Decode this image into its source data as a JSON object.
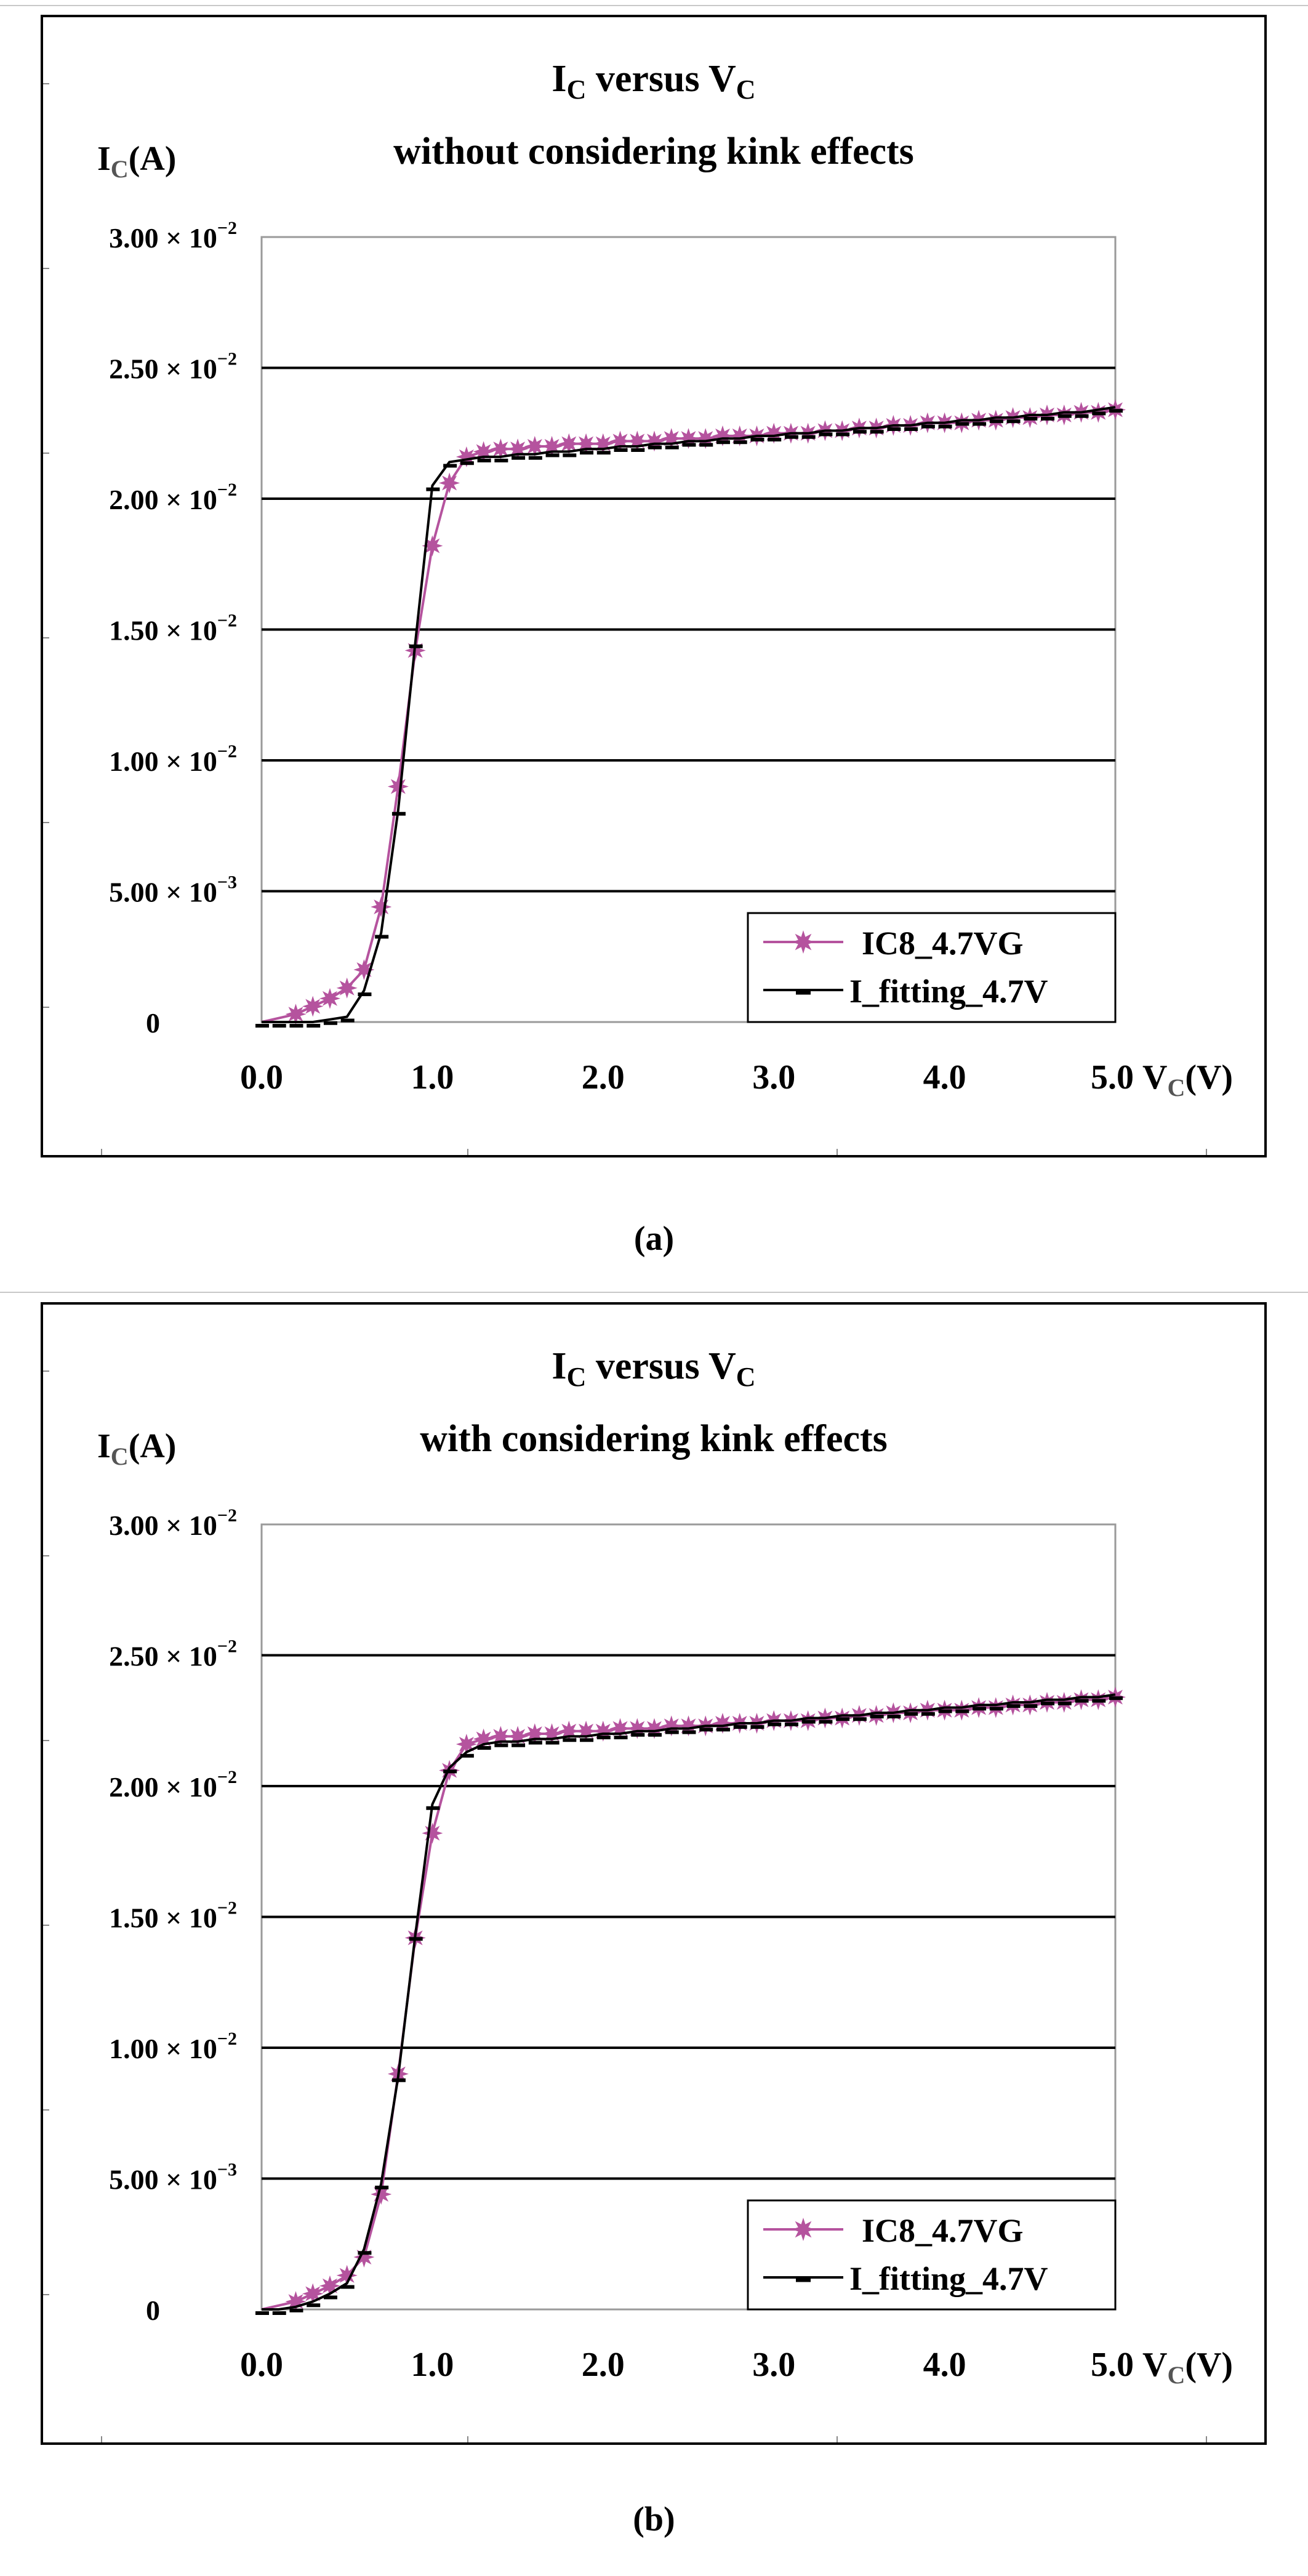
{
  "chart_data": [
    {
      "type": "line",
      "caption": "(a)",
      "title_line1_main": "I",
      "title_line1_sub1": "C",
      "title_line1_mid": " versus V",
      "title_line1_sub2": "C",
      "title_line2": "without considering kink effects",
      "ylabel_main": "I",
      "ylabel_sub": "C",
      "ylabel_unit": "(A)",
      "xlabel_main": "V",
      "xlabel_sub": "C",
      "xlabel_unit": "(V)",
      "xlim": [
        0,
        5
      ],
      "ylim": [
        0,
        0.03
      ],
      "y_ticks": [
        {
          "value": 0.03,
          "mant": "3.00 × 10",
          "exp": "−2"
        },
        {
          "value": 0.025,
          "mant": "2.50 × 10",
          "exp": "−2"
        },
        {
          "value": 0.02,
          "mant": "2.00 × 10",
          "exp": "−2"
        },
        {
          "value": 0.015,
          "mant": "1.50 × 10",
          "exp": "−2"
        },
        {
          "value": 0.01,
          "mant": "1.00 × 10",
          "exp": "−2"
        },
        {
          "value": 0.005,
          "mant": "5.00 × 10",
          "exp": "−3"
        },
        {
          "value": 0,
          "mant": "0",
          "exp": ""
        }
      ],
      "x_ticks": [
        {
          "value": 0,
          "label": "0.0"
        },
        {
          "value": 1,
          "label": "1.0"
        },
        {
          "value": 2,
          "label": "2.0"
        },
        {
          "value": 3,
          "label": "3.0"
        },
        {
          "value": 4,
          "label": "4.0"
        },
        {
          "value": 5,
          "label": "5.0"
        }
      ],
      "series": [
        {
          "name": "IC8_4.7VG",
          "color": "#b5539e",
          "marker": "star",
          "x": [
            0.2,
            0.3,
            0.4,
            0.5,
            0.6,
            0.7,
            0.8,
            0.9,
            1.0,
            1.1,
            1.2,
            1.3,
            1.4,
            1.5,
            1.6,
            1.7,
            1.8,
            1.9,
            2.0,
            2.1,
            2.2,
            2.3,
            2.4,
            2.5,
            2.6,
            2.7,
            2.8,
            2.9,
            3.0,
            3.1,
            3.2,
            3.3,
            3.4,
            3.5,
            3.6,
            3.7,
            3.8,
            3.9,
            4.0,
            4.1,
            4.2,
            4.3,
            4.4,
            4.5,
            4.6,
            4.7,
            4.8,
            4.9,
            5.0
          ],
          "values": [
            0.0003,
            0.0006,
            0.0009,
            0.0013,
            0.002,
            0.0044,
            0.009,
            0.0142,
            0.0182,
            0.0206,
            0.0216,
            0.0218,
            0.0219,
            0.0219,
            0.022,
            0.022,
            0.0221,
            0.0221,
            0.0221,
            0.0222,
            0.0222,
            0.0222,
            0.0223,
            0.0223,
            0.0223,
            0.0224,
            0.0224,
            0.0224,
            0.0225,
            0.0225,
            0.0225,
            0.0226,
            0.0226,
            0.0227,
            0.0227,
            0.0228,
            0.0228,
            0.0229,
            0.0229,
            0.0229,
            0.023,
            0.023,
            0.0231,
            0.0231,
            0.0232,
            0.0232,
            0.0233,
            0.0233,
            0.0234
          ]
        },
        {
          "name": "I_fitting_4.7V",
          "color": "#000000",
          "marker": "dash",
          "x": [
            0.0,
            0.1,
            0.2,
            0.3,
            0.4,
            0.5,
            0.6,
            0.7,
            0.8,
            0.9,
            1.0,
            1.1,
            1.2,
            1.3,
            1.4,
            1.5,
            1.6,
            1.7,
            1.8,
            1.9,
            2.0,
            2.1,
            2.2,
            2.3,
            2.4,
            2.5,
            2.6,
            2.7,
            2.8,
            2.9,
            3.0,
            3.1,
            3.2,
            3.3,
            3.4,
            3.5,
            3.6,
            3.7,
            3.8,
            3.9,
            4.0,
            4.1,
            4.2,
            4.3,
            4.4,
            4.5,
            4.6,
            4.7,
            4.8,
            4.9,
            5.0
          ],
          "values": [
            0.0,
            0.0,
            0.0,
            0.0,
            0.0001,
            0.0002,
            0.0012,
            0.0034,
            0.0081,
            0.0145,
            0.0205,
            0.0214,
            0.0215,
            0.0216,
            0.0216,
            0.0217,
            0.0217,
            0.0218,
            0.0218,
            0.0219,
            0.0219,
            0.022,
            0.022,
            0.0221,
            0.0221,
            0.0222,
            0.0222,
            0.0223,
            0.0223,
            0.0224,
            0.0224,
            0.0225,
            0.0225,
            0.0226,
            0.0226,
            0.0227,
            0.0227,
            0.0228,
            0.0228,
            0.0229,
            0.0229,
            0.023,
            0.023,
            0.0231,
            0.0231,
            0.0232,
            0.0232,
            0.0233,
            0.0233,
            0.0234,
            0.0235
          ]
        }
      ]
    },
    {
      "type": "line",
      "caption": "(b)",
      "title_line1_main": "I",
      "title_line1_sub1": "C",
      "title_line1_mid": " versus V",
      "title_line1_sub2": "C",
      "title_line2": "with considering kink effects",
      "ylabel_main": "I",
      "ylabel_sub": "C",
      "ylabel_unit": "(A)",
      "xlabel_main": "V",
      "xlabel_sub": "C",
      "xlabel_unit": "(V)",
      "xlim": [
        0,
        5
      ],
      "ylim": [
        0,
        0.03
      ],
      "y_ticks": [
        {
          "value": 0.03,
          "mant": "3.00 × 10",
          "exp": "−2"
        },
        {
          "value": 0.025,
          "mant": "2.50 × 10",
          "exp": "−2"
        },
        {
          "value": 0.02,
          "mant": "2.00 × 10",
          "exp": "−2"
        },
        {
          "value": 0.015,
          "mant": "1.50 × 10",
          "exp": "−2"
        },
        {
          "value": 0.01,
          "mant": "1.00 × 10",
          "exp": "−2"
        },
        {
          "value": 0.005,
          "mant": "5.00 × 10",
          "exp": "−3"
        },
        {
          "value": 0,
          "mant": "0",
          "exp": ""
        }
      ],
      "x_ticks": [
        {
          "value": 0,
          "label": "0.0"
        },
        {
          "value": 1,
          "label": "1.0"
        },
        {
          "value": 2,
          "label": "2.0"
        },
        {
          "value": 3,
          "label": "3.0"
        },
        {
          "value": 4,
          "label": "4.0"
        },
        {
          "value": 5,
          "label": "5.0"
        }
      ],
      "series": [
        {
          "name": "IC8_4.7VG",
          "color": "#b5539e",
          "marker": "star",
          "x": [
            0.2,
            0.3,
            0.4,
            0.5,
            0.6,
            0.7,
            0.8,
            0.9,
            1.0,
            1.1,
            1.2,
            1.3,
            1.4,
            1.5,
            1.6,
            1.7,
            1.8,
            1.9,
            2.0,
            2.1,
            2.2,
            2.3,
            2.4,
            2.5,
            2.6,
            2.7,
            2.8,
            2.9,
            3.0,
            3.1,
            3.2,
            3.3,
            3.4,
            3.5,
            3.6,
            3.7,
            3.8,
            3.9,
            4.0,
            4.1,
            4.2,
            4.3,
            4.4,
            4.5,
            4.6,
            4.7,
            4.8,
            4.9,
            5.0
          ],
          "values": [
            0.0003,
            0.0006,
            0.0009,
            0.0013,
            0.002,
            0.0044,
            0.009,
            0.0142,
            0.0182,
            0.0206,
            0.0216,
            0.0218,
            0.0219,
            0.0219,
            0.022,
            0.022,
            0.0221,
            0.0221,
            0.0221,
            0.0222,
            0.0222,
            0.0222,
            0.0223,
            0.0223,
            0.0223,
            0.0224,
            0.0224,
            0.0224,
            0.0225,
            0.0225,
            0.0225,
            0.0226,
            0.0226,
            0.0227,
            0.0227,
            0.0228,
            0.0228,
            0.0229,
            0.0229,
            0.0229,
            0.023,
            0.023,
            0.0231,
            0.0231,
            0.0232,
            0.0232,
            0.0233,
            0.0233,
            0.0234
          ]
        },
        {
          "name": "I_fitting_4.7V",
          "color": "#000000",
          "marker": "dash",
          "x": [
            0.0,
            0.1,
            0.2,
            0.3,
            0.4,
            0.5,
            0.6,
            0.7,
            0.8,
            0.9,
            1.0,
            1.1,
            1.2,
            1.3,
            1.4,
            1.5,
            1.6,
            1.7,
            1.8,
            1.9,
            2.0,
            2.1,
            2.2,
            2.3,
            2.4,
            2.5,
            2.6,
            2.7,
            2.8,
            2.9,
            3.0,
            3.1,
            3.2,
            3.3,
            3.4,
            3.5,
            3.6,
            3.7,
            3.8,
            3.9,
            4.0,
            4.1,
            4.2,
            4.3,
            4.4,
            4.5,
            4.6,
            4.7,
            4.8,
            4.9,
            5.0
          ],
          "values": [
            0.0,
            0.0,
            0.0001,
            0.0003,
            0.0006,
            0.001,
            0.0023,
            0.0048,
            0.0089,
            0.0143,
            0.0193,
            0.0207,
            0.0213,
            0.0216,
            0.0217,
            0.0217,
            0.0218,
            0.0218,
            0.0219,
            0.0219,
            0.022,
            0.022,
            0.0221,
            0.0221,
            0.0222,
            0.0222,
            0.0223,
            0.0223,
            0.0224,
            0.0224,
            0.0225,
            0.0225,
            0.0226,
            0.0226,
            0.0227,
            0.0227,
            0.0228,
            0.0228,
            0.0229,
            0.0229,
            0.023,
            0.023,
            0.0231,
            0.0231,
            0.0232,
            0.0232,
            0.0233,
            0.0233,
            0.0234,
            0.0234,
            0.0235
          ]
        }
      ]
    }
  ]
}
